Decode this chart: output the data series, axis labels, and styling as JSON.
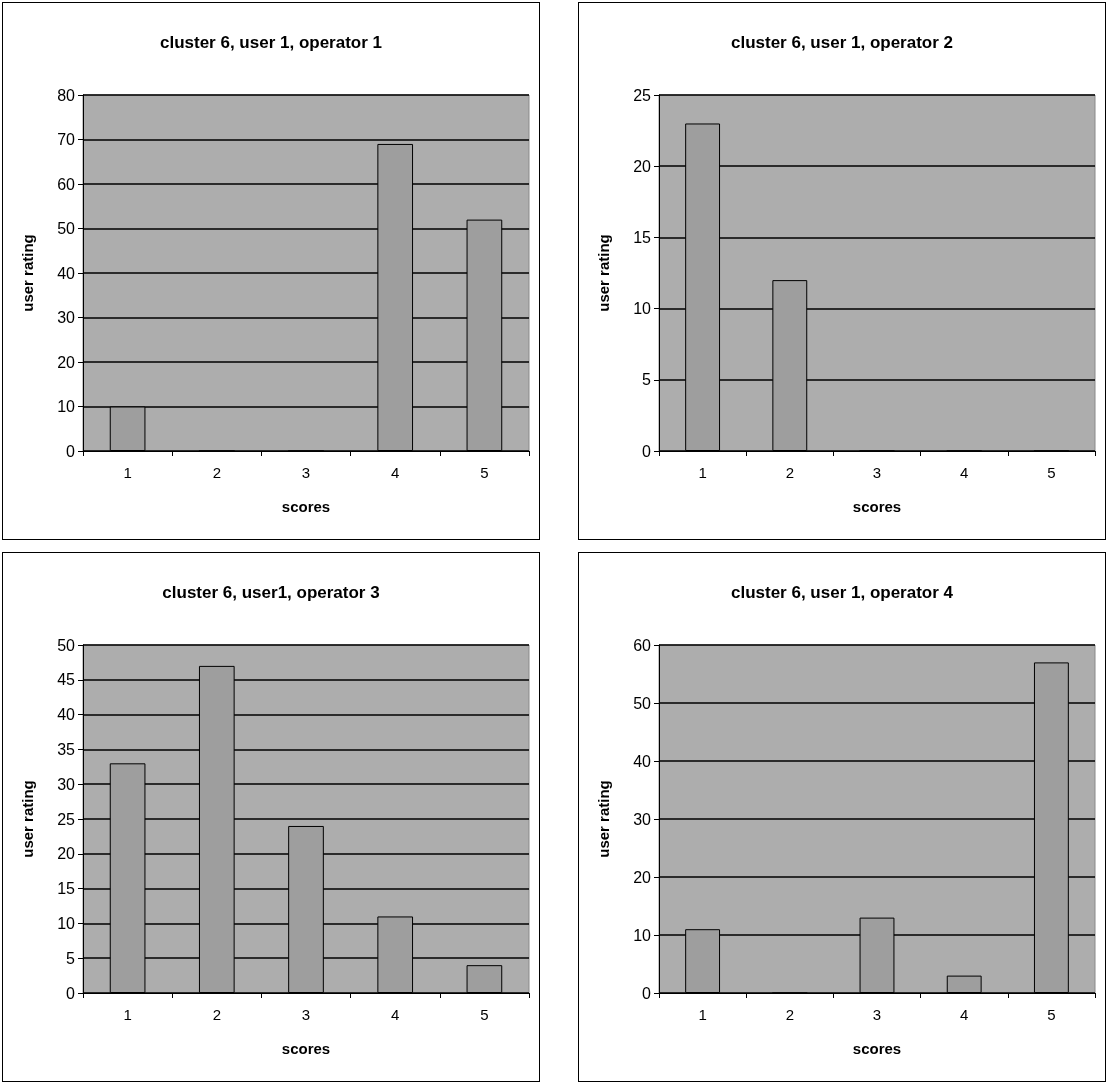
{
  "chart_data": [
    {
      "type": "bar",
      "title": "cluster 6, user 1, operator 1",
      "xlabel": "scores",
      "ylabel": "user rating",
      "categories": [
        "1",
        "2",
        "3",
        "4",
        "5"
      ],
      "values": [
        10,
        0,
        0,
        69,
        52
      ],
      "color": "#9e9e9e",
      "ylim": [
        0,
        80
      ],
      "yticks": [
        0,
        10,
        20,
        30,
        40,
        50,
        60,
        70,
        80
      ],
      "grid": "y"
    },
    {
      "type": "bar",
      "title": "cluster 6, user 1, operator 2",
      "xlabel": "scores",
      "ylabel": "user rating",
      "categories": [
        "1",
        "2",
        "3",
        "4",
        "5"
      ],
      "values": [
        23,
        12,
        0,
        0,
        0
      ],
      "color": "#9e9e9e",
      "ylim": [
        0,
        25
      ],
      "yticks": [
        0,
        5,
        10,
        15,
        20,
        25
      ],
      "grid": "y"
    },
    {
      "type": "bar",
      "title": "cluster 6, user1, operator 3",
      "xlabel": "scores",
      "ylabel": "user rating",
      "categories": [
        "1",
        "2",
        "3",
        "4",
        "5"
      ],
      "values": [
        33,
        47,
        24,
        11,
        4
      ],
      "color": "#9e9e9e",
      "ylim": [
        0,
        50
      ],
      "yticks": [
        0,
        5,
        10,
        15,
        20,
        25,
        30,
        35,
        40,
        45,
        50
      ],
      "grid": "y"
    },
    {
      "type": "bar",
      "title": "cluster 6, user 1, operator 4",
      "xlabel": "scores",
      "ylabel": "user rating",
      "categories": [
        "1",
        "2",
        "3",
        "4",
        "5"
      ],
      "values": [
        11,
        0,
        13,
        3,
        57
      ],
      "color": "#9e9e9e",
      "ylim": [
        0,
        60
      ],
      "yticks": [
        0,
        10,
        20,
        30,
        40,
        50,
        60
      ],
      "grid": "y"
    }
  ]
}
